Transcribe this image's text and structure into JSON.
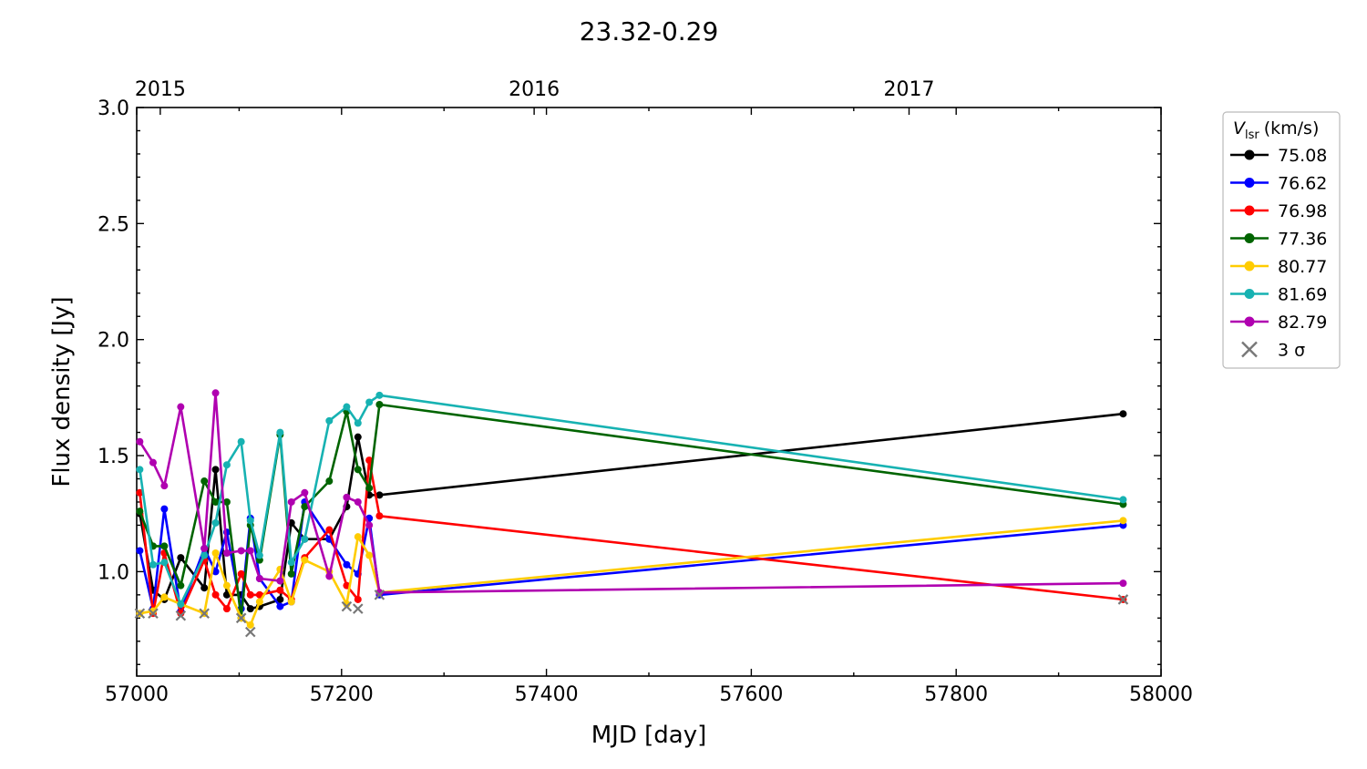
{
  "chart_data": {
    "type": "line",
    "title": "23.32-0.29",
    "xlabel": "MJD [day]",
    "ylabel": "Flux density [Jy]",
    "xlim": [
      57000,
      58000
    ],
    "ylim": [
      0.55,
      3.0
    ],
    "xticks": [
      "57000",
      "57200",
      "57400",
      "57600",
      "57800",
      "58000"
    ],
    "yticks": [
      "1.0",
      "1.5",
      "2.0",
      "2.5",
      "3.0"
    ],
    "top_axis_ticks": [
      {
        "mjd": 57023,
        "label": "2015"
      },
      {
        "mjd": 57388,
        "label": "2016"
      },
      {
        "mjd": 57754,
        "label": "2017"
      }
    ],
    "grid": false,
    "legend": {
      "title_symbol": "V",
      "title_subscript": "lsr",
      "title_unit": "(km/s)",
      "placement": "right-outside",
      "threshold_label": "3 σ",
      "threshold_color": "#777777"
    },
    "x": [
      57003,
      57016,
      57027,
      57043,
      57066,
      57077,
      57088,
      57102,
      57111,
      57120,
      57140,
      57151,
      57164,
      57188,
      57205,
      57216,
      57227,
      57237,
      57963
    ],
    "series": [
      {
        "name": "75.08",
        "color": "#000000",
        "values": [
          1.25,
          0.92,
          0.88,
          1.06,
          0.93,
          1.44,
          0.9,
          0.9,
          0.84,
          0.85,
          0.88,
          1.21,
          1.14,
          1.14,
          1.28,
          1.58,
          1.33,
          1.33,
          1.68
        ]
      },
      {
        "name": "76.62",
        "color": "#0000ff",
        "values": [
          1.09,
          0.84,
          1.27,
          0.83,
          1.1,
          1.0,
          1.17,
          0.84,
          1.23,
          0.97,
          0.85,
          0.87,
          1.3,
          1.14,
          1.03,
          0.99,
          1.23,
          0.9,
          1.2
        ]
      },
      {
        "name": "76.98",
        "color": "#ff0000",
        "values": [
          1.34,
          0.82,
          1.08,
          0.82,
          1.05,
          0.9,
          0.84,
          0.99,
          0.9,
          0.9,
          0.92,
          0.88,
          1.06,
          1.18,
          0.94,
          0.88,
          1.48,
          1.24,
          0.88
        ]
      },
      {
        "name": "77.36",
        "color": "#006400",
        "values": [
          1.26,
          1.11,
          1.11,
          0.94,
          1.39,
          1.3,
          1.3,
          0.8,
          1.2,
          1.05,
          1.59,
          0.99,
          1.28,
          1.39,
          1.69,
          1.44,
          1.36,
          1.72,
          1.29
        ]
      },
      {
        "name": "80.77",
        "color": "#ffcc00",
        "values": [
          0.82,
          0.83,
          0.89,
          0.86,
          0.82,
          1.08,
          0.94,
          0.8,
          0.77,
          0.87,
          1.01,
          0.87,
          1.05,
          1.0,
          0.86,
          1.15,
          1.07,
          0.91,
          1.22
        ]
      },
      {
        "name": "81.69",
        "color": "#17b2b2",
        "values": [
          1.44,
          1.03,
          1.04,
          0.86,
          1.07,
          1.21,
          1.46,
          1.56,
          1.22,
          1.07,
          1.6,
          1.04,
          1.14,
          1.65,
          1.71,
          1.64,
          1.73,
          1.76,
          1.31
        ]
      },
      {
        "name": "82.79",
        "color": "#b000b0",
        "values": [
          1.56,
          1.47,
          1.37,
          1.71,
          1.1,
          1.77,
          1.08,
          1.09,
          1.09,
          0.97,
          0.96,
          1.3,
          1.34,
          0.98,
          1.32,
          1.3,
          1.2,
          0.91,
          0.95
        ]
      }
    ],
    "threshold_3sigma_points": [
      {
        "x": 57003,
        "y": 0.82
      },
      {
        "x": 57016,
        "y": 0.82
      },
      {
        "x": 57043,
        "y": 0.81
      },
      {
        "x": 57066,
        "y": 0.82
      },
      {
        "x": 57102,
        "y": 0.8
      },
      {
        "x": 57111,
        "y": 0.74
      },
      {
        "x": 57205,
        "y": 0.85
      },
      {
        "x": 57216,
        "y": 0.84
      },
      {
        "x": 57237,
        "y": 0.9
      },
      {
        "x": 57963,
        "y": 0.88
      }
    ]
  }
}
